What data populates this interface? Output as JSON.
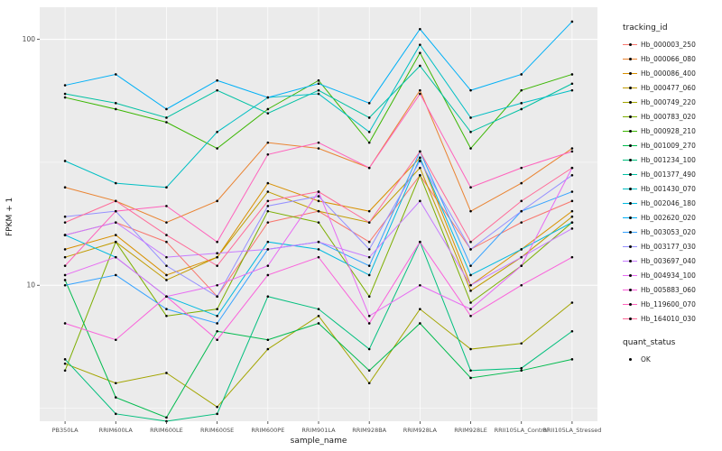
{
  "chart_data": {
    "type": "line",
    "title": "",
    "xlabel": "sample_name",
    "ylabel": "FPKM + 1",
    "y_scale": "log10",
    "ylim": [
      2.8,
      135
    ],
    "y_ticks": [
      10,
      100
    ],
    "y_minor_ticks": [
      3.162,
      31.62
    ],
    "legend_title": "tracking_id",
    "legend_position": "right",
    "grid": true,
    "panel_bg": "#EBEBEB",
    "grid_color": "#FFFFFF",
    "axis_text_color": "#4D4D4D",
    "point_color": "#000000",
    "categories": [
      "PB350LA",
      "RRIM600LA",
      "RRIM600LE",
      "RRIM600SE",
      "RRIM600PE",
      "RRIM901LA",
      "RRIM928BA",
      "RRIM928LA",
      "RRIM928LE",
      "RRII105LA_Control",
      "RRII105LA_Stressed"
    ],
    "series": [
      {
        "name": "Hb_000003_250",
        "color": "#F8766D",
        "values": [
          16,
          18,
          15,
          9,
          18,
          20,
          15,
          28,
          14,
          18,
          22
        ]
      },
      {
        "name": "Hb_000066_080",
        "color": "#EA8331",
        "values": [
          25,
          22,
          18,
          22,
          38,
          36,
          30,
          62,
          20,
          26,
          36
        ]
      },
      {
        "name": "Hb_000086_400",
        "color": "#D89000",
        "values": [
          14,
          16,
          11,
          13,
          26,
          22,
          20,
          33,
          10,
          14,
          20
        ]
      },
      {
        "name": "Hb_000477_060",
        "color": "#C09B00",
        "values": [
          13,
          15,
          10.5,
          13,
          24,
          20,
          18,
          30,
          9.5,
          13,
          19
        ]
      },
      {
        "name": "Hb_000749_220",
        "color": "#A3A500",
        "values": [
          4.8,
          4,
          4.4,
          3.2,
          5.5,
          7.5,
          4,
          8,
          5.5,
          5.8,
          8.5
        ]
      },
      {
        "name": "Hb_000783_020",
        "color": "#7CAE00",
        "values": [
          4.5,
          15,
          7.5,
          8,
          20,
          18,
          9,
          28,
          8.5,
          12,
          18
        ]
      },
      {
        "name": "Hb_000928_210",
        "color": "#39B600",
        "values": [
          58,
          52,
          46,
          36,
          52,
          68,
          38,
          88,
          36,
          62,
          72
        ]
      },
      {
        "name": "Hb_001009_270",
        "color": "#00BB4E",
        "values": [
          10.5,
          3.5,
          2.9,
          6.5,
          6,
          7,
          4.5,
          7,
          4.2,
          4.5,
          5
        ]
      },
      {
        "name": "Hb_001234_100",
        "color": "#00BF7D",
        "values": [
          5,
          3,
          2.8,
          3,
          9,
          8,
          5.5,
          15,
          4.5,
          4.6,
          6.5
        ]
      },
      {
        "name": "Hb_001377_490",
        "color": "#00C1A3",
        "values": [
          60,
          55,
          48,
          62,
          50,
          62,
          48,
          78,
          42,
          52,
          66
        ]
      },
      {
        "name": "Hb_001430_070",
        "color": "#00BFC4",
        "values": [
          32,
          26,
          25,
          42,
          58,
          60,
          42,
          95,
          48,
          55,
          62
        ]
      },
      {
        "name": "Hb_002046_180",
        "color": "#00BAE0",
        "values": [
          16,
          13,
          9,
          7.5,
          15,
          14,
          11,
          33,
          11,
          14,
          18
        ]
      },
      {
        "name": "Hb_002620_020",
        "color": "#00B0F6",
        "values": [
          65,
          72,
          52,
          68,
          58,
          66,
          55,
          110,
          62,
          72,
          118
        ]
      },
      {
        "name": "Hb_003053_020",
        "color": "#35A2FF",
        "values": [
          10,
          11,
          8,
          7,
          14,
          15,
          12,
          35,
          12,
          20,
          24
        ]
      },
      {
        "name": "Hb_003177_030",
        "color": "#9590FF",
        "values": [
          19,
          20,
          12,
          9,
          21,
          23,
          14,
          32,
          14,
          20,
          28
        ]
      },
      {
        "name": "Hb_003697_040",
        "color": "#C77CFF",
        "values": [
          16,
          18,
          13,
          13.5,
          14,
          15,
          13,
          22,
          10,
          13,
          17
        ]
      },
      {
        "name": "Hb_004934_100",
        "color": "#E76BF3",
        "values": [
          11,
          13,
          9,
          10,
          12,
          24,
          7.5,
          10,
          8,
          12,
          30
        ]
      },
      {
        "name": "Hb_005883_060",
        "color": "#FA62DB",
        "values": [
          7,
          6,
          9,
          6,
          11,
          13,
          7,
          15,
          7.5,
          10,
          13
        ]
      },
      {
        "name": "Hb_119600_070",
        "color": "#FF62BC",
        "values": [
          12,
          20,
          21,
          15,
          34,
          38,
          30,
          60,
          25,
          30,
          35
        ]
      },
      {
        "name": "Hb_164010_030",
        "color": "#FF6A98",
        "values": [
          18,
          22,
          16,
          12,
          22,
          24,
          18,
          35,
          15,
          22,
          30
        ]
      }
    ],
    "legend2_title": "quant_status",
    "legend2_items": [
      {
        "label": "OK",
        "marker": "point",
        "color": "#000000"
      }
    ]
  }
}
